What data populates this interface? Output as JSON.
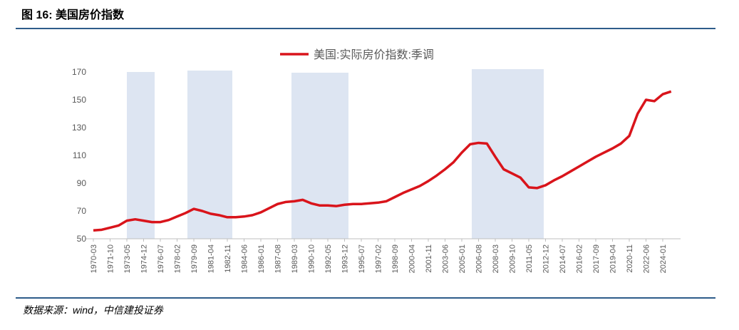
{
  "chart_data": {
    "type": "line",
    "title": "图 16:  美国房价指数",
    "source": "数据来源：wind，中信建投证券",
    "categories": [
      "1970-03",
      null,
      "1971-10",
      null,
      "1973-05",
      null,
      "1974-12",
      null,
      "1976-07",
      null,
      "1978-02",
      null,
      "1979-09",
      null,
      "1981-04",
      null,
      "1982-11",
      null,
      "1984-06",
      null,
      "1986-01",
      null,
      "1987-08",
      null,
      "1989-03",
      null,
      "1990-10",
      null,
      "1992-05",
      null,
      "1993-12",
      null,
      "1995-07",
      null,
      "1997-02",
      null,
      "1998-09",
      null,
      "2000-04",
      null,
      "2001-11",
      null,
      "2003-06",
      null,
      "2005-01",
      null,
      "2006-08",
      null,
      "2008-03",
      null,
      "2009-10",
      null,
      "2011-05",
      null,
      "2012-12",
      null,
      "2014-07",
      null,
      "2016-02",
      null,
      "2017-09",
      null,
      "2019-04",
      null,
      "2020-11",
      null,
      "2022-06",
      null,
      "2024-01",
      null
    ],
    "series": [
      {
        "name": "美国:实际房价指数:季调",
        "color": "#d9141b",
        "values": [
          56,
          56.5,
          58,
          59.5,
          63,
          64,
          63,
          62,
          62,
          63.5,
          66,
          68.5,
          71.5,
          70,
          68,
          67,
          65.5,
          65.5,
          66,
          67,
          69,
          72,
          75,
          76.5,
          77,
          78,
          75.5,
          74,
          74,
          73.5,
          74.5,
          75,
          75,
          75.5,
          76,
          77,
          80,
          83,
          85.5,
          88,
          91.5,
          95.5,
          100,
          105,
          112,
          118,
          119,
          118.5,
          109,
          100,
          97,
          94,
          87,
          86.5,
          88.5,
          92,
          95,
          98.5,
          102,
          105.5,
          109,
          112,
          115,
          118.5,
          124,
          140,
          150,
          149,
          154,
          156
        ]
      }
    ],
    "ylim": [
      50,
      170
    ],
    "yticks": [
      50,
      70,
      90,
      110,
      130,
      150,
      170
    ],
    "legend": "top"
  }
}
